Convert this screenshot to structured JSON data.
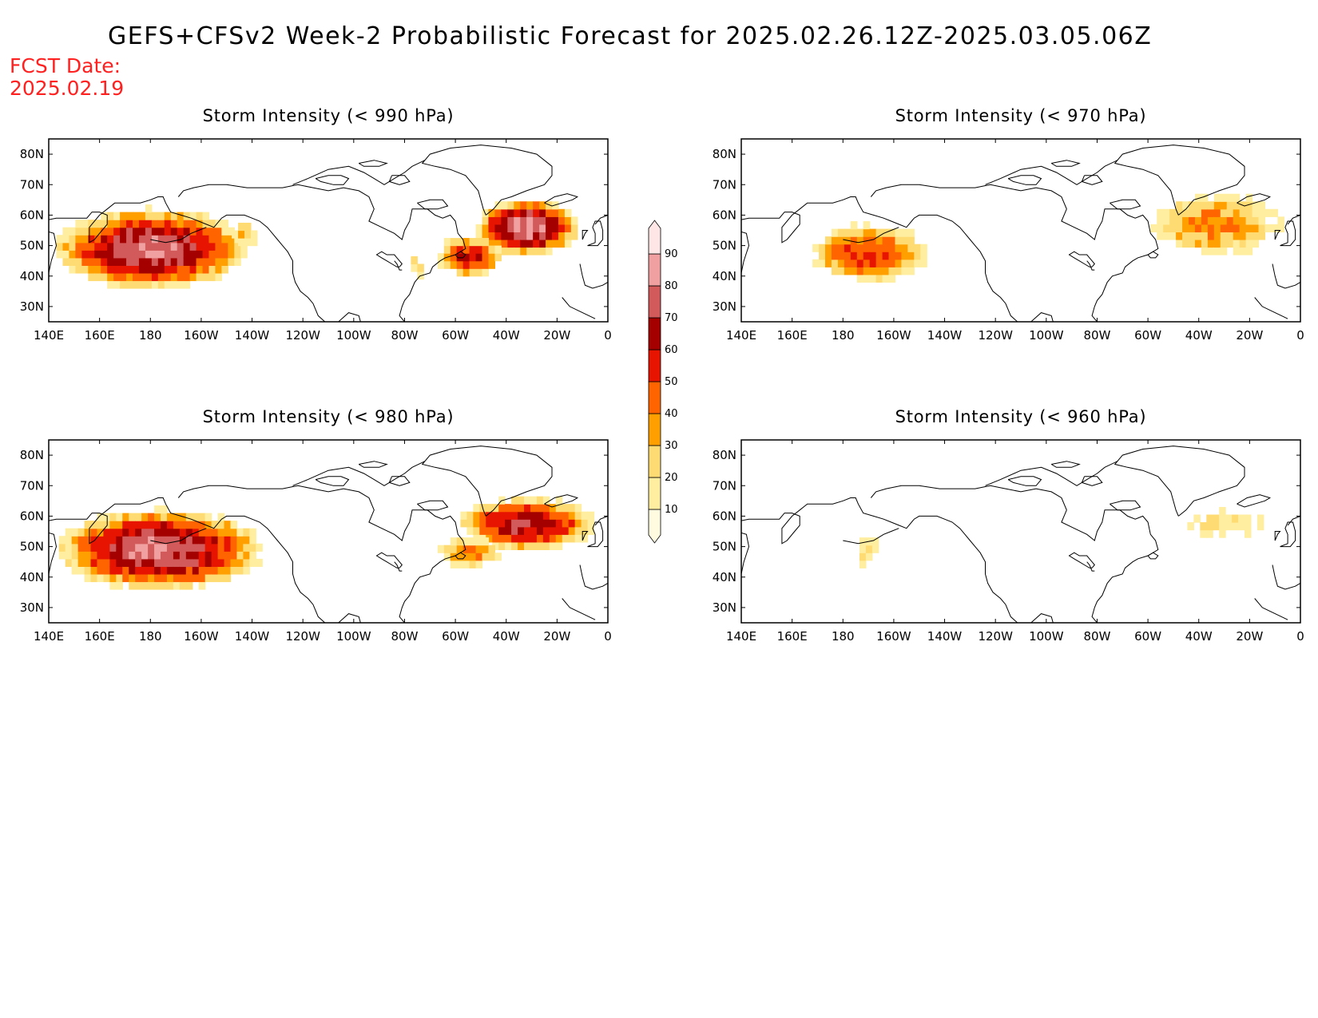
{
  "title": "GEFS+CFSv2 Week-2 Probabilistic Forecast for 2025.02.26.12Z-2025.03.05.06Z",
  "fcst_label": "FCST Date:",
  "fcst_date": "2025.02.19",
  "axes": {
    "lon_labels": [
      "140E",
      "160E",
      "180",
      "160W",
      "140W",
      "120W",
      "100W",
      "80W",
      "60W",
      "40W",
      "20W",
      "0"
    ],
    "lat_labels": [
      "30N",
      "40N",
      "50N",
      "60N",
      "70N",
      "80N"
    ],
    "lon_values": [
      140,
      160,
      180,
      200,
      220,
      240,
      260,
      280,
      300,
      320,
      340,
      360
    ],
    "lat_values": [
      30,
      40,
      50,
      60,
      70,
      80
    ],
    "lon_range": [
      140,
      360
    ],
    "lat_range": [
      25,
      85
    ]
  },
  "colorbar": {
    "levels": [
      "10",
      "20",
      "30",
      "40",
      "50",
      "60",
      "70",
      "80",
      "90"
    ],
    "colors": [
      "#fffbe0",
      "#ffeea0",
      "#ffdc73",
      "#ffa000",
      "#ff6400",
      "#e61400",
      "#a50000",
      "#d25a5a",
      "#f0a0a0",
      "#ffe6e6"
    ]
  },
  "panels": [
    {
      "id": "p990",
      "title": "Storm Intensity (< 990 hPa)",
      "regions": [
        {
          "lon": [
            143,
            218
          ],
          "lat": [
            36,
            62
          ],
          "peak": 80
        },
        {
          "lon": [
            212,
            223
          ],
          "lat": [
            50,
            58
          ],
          "peak": 30
        },
        {
          "lon": [
            308,
            348
          ],
          "lat": [
            47,
            65
          ],
          "peak": 85
        },
        {
          "lon": [
            293,
            318
          ],
          "lat": [
            40,
            53
          ],
          "peak": 60
        },
        {
          "lon": [
            280,
            290
          ],
          "lat": [
            39,
            47
          ],
          "peak": 20
        }
      ]
    },
    {
      "id": "p970",
      "title": "Storm Intensity (< 970 hPa)",
      "regions": [
        {
          "lon": [
            168,
            213
          ],
          "lat": [
            38,
            57
          ],
          "peak": 55
        },
        {
          "lon": [
            301,
            352
          ],
          "lat": [
            47,
            67
          ],
          "peak": 40
        }
      ]
    },
    {
      "id": "p980",
      "title": "Storm Intensity (< 980 hPa)",
      "regions": [
        {
          "lon": [
            144,
            224
          ],
          "lat": [
            36,
            62
          ],
          "peak": 80
        },
        {
          "lon": [
            302,
            355
          ],
          "lat": [
            49,
            66
          ],
          "peak": 70
        },
        {
          "lon": [
            293,
            318
          ],
          "lat": [
            43,
            53
          ],
          "peak": 40
        }
      ]
    },
    {
      "id": "p960",
      "title": "Storm Intensity (< 960 hPa)",
      "regions": [
        {
          "lon": [
            184,
            196
          ],
          "lat": [
            43,
            53
          ],
          "peak": 20
        },
        {
          "lon": [
            313,
            348
          ],
          "lat": [
            53,
            63
          ],
          "peak": 20
        }
      ]
    }
  ]
}
